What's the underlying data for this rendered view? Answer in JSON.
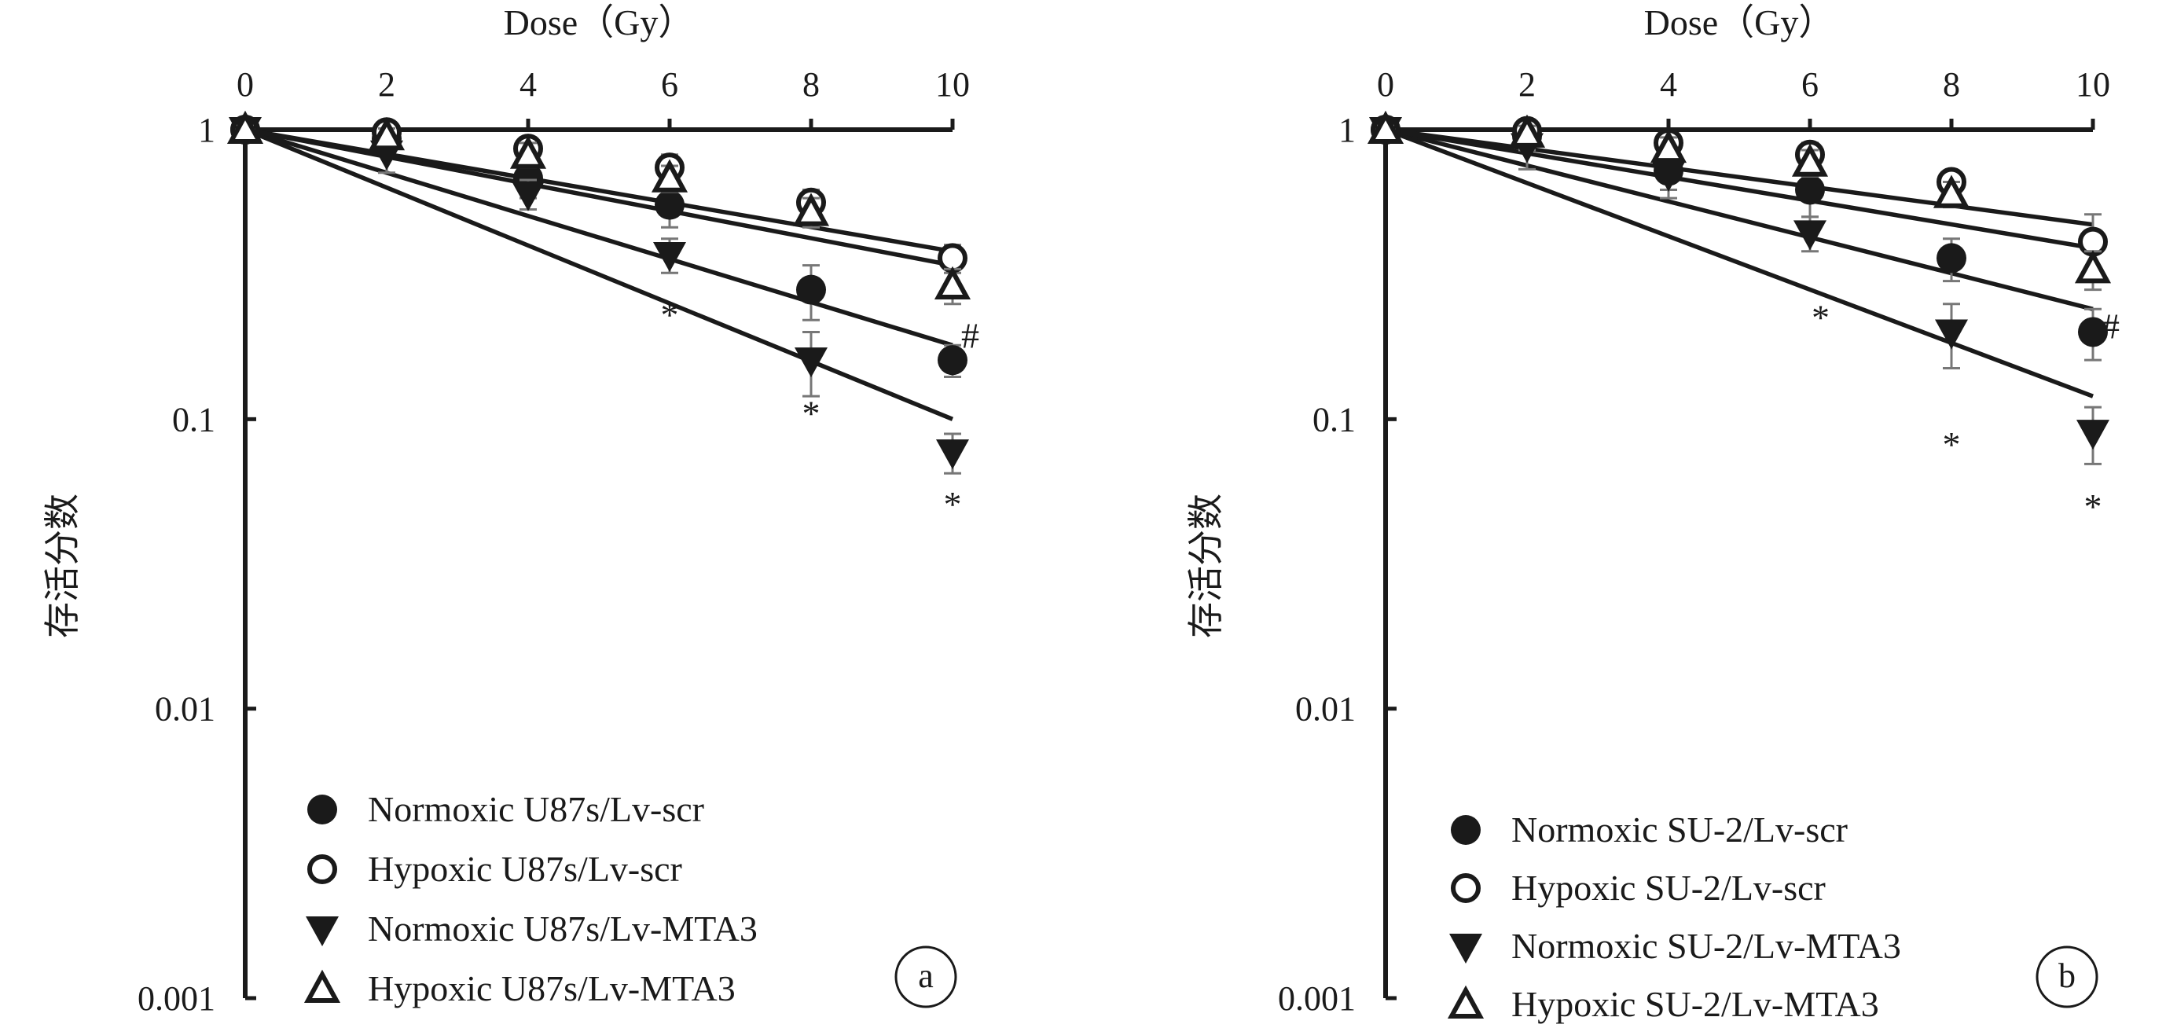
{
  "chart_data": [
    {
      "type": "line",
      "panel_label": "a",
      "xlabel": "Dose（Gy）",
      "ylabel": "存活分数",
      "x_axis_position": "top",
      "y_scale": "log",
      "xlim": [
        0,
        10
      ],
      "ylim": [
        0.001,
        1
      ],
      "x_ticks": [
        "0",
        "2",
        "4",
        "6",
        "8",
        "10"
      ],
      "y_ticks": [
        "1",
        "0.1",
        "0.01",
        "0.001"
      ],
      "grid": false,
      "legend_position": "bottom-left",
      "x": [
        0,
        2,
        4,
        6,
        8,
        10
      ],
      "series": [
        {
          "name": "Normoxic U87s/Lv-scr",
          "marker": "filled-circle",
          "values": [
            1,
            0.93,
            0.68,
            0.55,
            0.28,
            0.16
          ],
          "errors": [
            0.03,
            0.08,
            0.1,
            0.09,
            0.06,
            0.02
          ],
          "fit_end": 0.18
        },
        {
          "name": "Hypoxic U87s/Lv-scr",
          "marker": "open-circle",
          "values": [
            1,
            0.98,
            0.86,
            0.74,
            0.56,
            0.36
          ],
          "errors": [
            0.03,
            0.05,
            0.07,
            0.08,
            0.06,
            0.04
          ],
          "fit_end": 0.38
        },
        {
          "name": "Normoxic U87s/Lv-MTA3",
          "marker": "filled-triangle-down",
          "values": [
            1,
            0.83,
            0.6,
            0.37,
            0.16,
            0.077
          ],
          "errors": [
            0.03,
            0.12,
            0.07,
            0.05,
            0.04,
            0.012
          ],
          "fit_end": 0.1
        },
        {
          "name": "Hypoxic U87s/Lv-MTA3",
          "marker": "open-triangle-up",
          "values": [
            1,
            0.95,
            0.82,
            0.68,
            0.52,
            0.29
          ],
          "errors": [
            0.03,
            0.06,
            0.08,
            0.07,
            0.06,
            0.04
          ],
          "fit_end": 0.34
        }
      ],
      "annotations": [
        {
          "text": "*",
          "x": 6,
          "y": 0.23
        },
        {
          "text": "*",
          "x": 8,
          "y": 0.105
        },
        {
          "text": "*",
          "x": 10,
          "y": 0.051
        },
        {
          "text": "#",
          "x": 10.25,
          "y": 0.195
        }
      ]
    },
    {
      "type": "line",
      "panel_label": "b",
      "xlabel": "Dose（Gy）",
      "ylabel": "存活分数",
      "x_axis_position": "top",
      "y_scale": "log",
      "xlim": [
        0,
        10
      ],
      "ylim": [
        0.001,
        1
      ],
      "x_ticks": [
        "0",
        "2",
        "4",
        "6",
        "8",
        "10"
      ],
      "y_ticks": [
        "1",
        "0.1",
        "0.01",
        "0.001"
      ],
      "grid": false,
      "legend_position": "bottom-left",
      "x": [
        0,
        2,
        4,
        6,
        8,
        10
      ],
      "series": [
        {
          "name": "Normoxic SU-2/Lv-scr",
          "marker": "filled-circle",
          "values": [
            1,
            0.95,
            0.72,
            0.62,
            0.36,
            0.2
          ],
          "errors": [
            0.03,
            0.1,
            0.1,
            0.12,
            0.06,
            0.04
          ],
          "fit_end": 0.24
        },
        {
          "name": "Hypoxic SU-2/Lv-scr",
          "marker": "open-circle",
          "values": [
            1,
            0.99,
            0.9,
            0.82,
            0.66,
            0.41
          ],
          "errors": [
            0.03,
            0.05,
            0.07,
            0.08,
            0.06,
            0.1
          ],
          "fit_end": 0.47
        },
        {
          "name": "Normoxic SU-2/Lv-MTA3",
          "marker": "filled-triangle-down",
          "values": [
            1,
            0.88,
            0.7,
            0.44,
            0.2,
            0.09
          ],
          "errors": [
            0.03,
            0.15,
            0.12,
            0.06,
            0.05,
            0.02
          ],
          "fit_end": 0.12
        },
        {
          "name": "Hypoxic SU-2/Lv-MTA3",
          "marker": "open-triangle-up",
          "values": [
            1,
            0.97,
            0.86,
            0.77,
            0.6,
            0.33
          ],
          "errors": [
            0.03,
            0.06,
            0.08,
            0.08,
            0.06,
            0.05
          ],
          "fit_end": 0.39
        }
      ],
      "annotations": [
        {
          "text": "*",
          "x": 6.15,
          "y": 0.225
        },
        {
          "text": "*",
          "x": 8,
          "y": 0.082
        },
        {
          "text": "*",
          "x": 10,
          "y": 0.05
        },
        {
          "text": "#",
          "x": 10.25,
          "y": 0.21
        }
      ]
    }
  ]
}
